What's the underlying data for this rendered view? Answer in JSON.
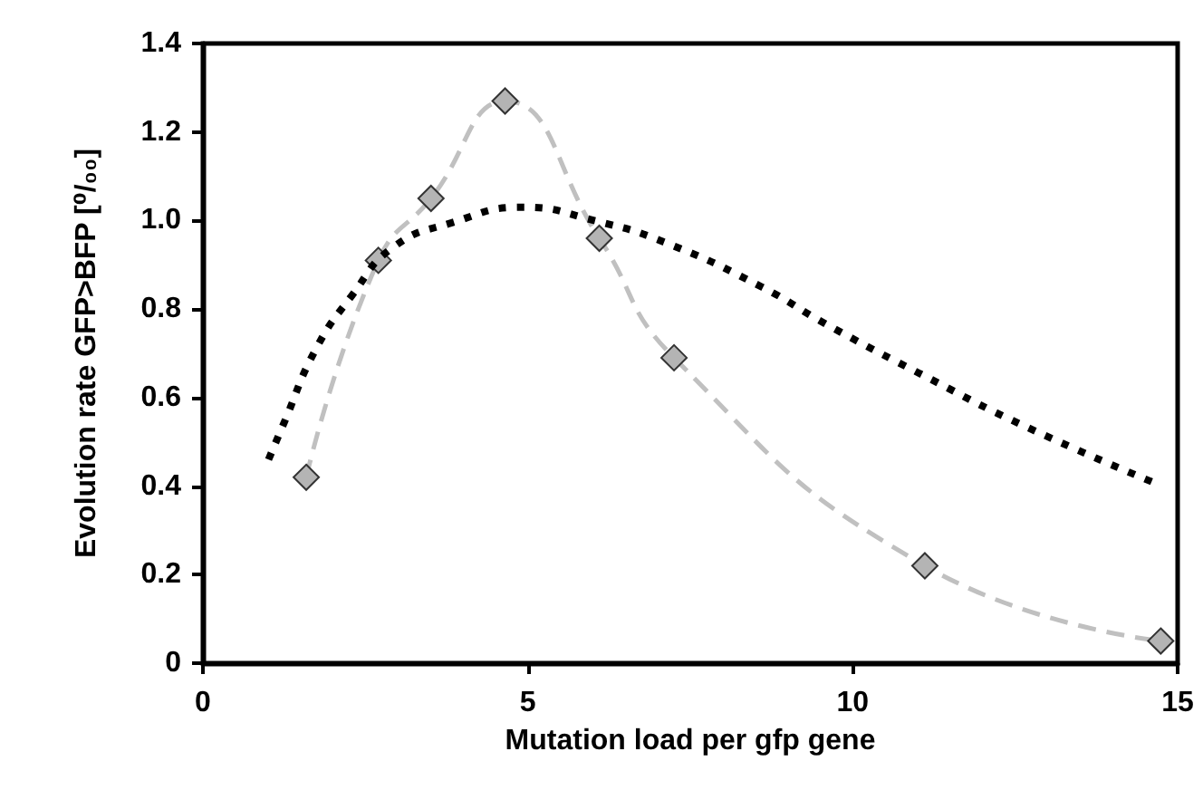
{
  "chart_data": {
    "type": "line",
    "xlabel": "Mutation load per gfp gene",
    "ylabel": "Evolution rate GFP>BFP [⁰/₀₀]",
    "xlim": [
      0,
      15
    ],
    "xticks": [
      0,
      5,
      10,
      15
    ],
    "ylim": [
      0,
      1.4
    ],
    "yticks": [
      0,
      0.2,
      0.4,
      0.6,
      0.8,
      {
        "value": 1,
        "label": "1.0"
      },
      1.2,
      1.4
    ],
    "grid": false,
    "series": [
      {
        "color": "#c0c0c0",
        "marker": "diamond",
        "line_style": "dashed",
        "x": [
          1.59,
          2.7,
          3.51,
          4.65,
          6.1,
          7.25,
          11.11,
          14.74
        ],
        "values": [
          0.42,
          0.91,
          1.05,
          1.27,
          0.96,
          0.69,
          0.22,
          0.05
        ]
      },
      {
        "color": "#000000",
        "marker": "none",
        "line_style": "dotted",
        "x": [
          1.01,
          1.24,
          1.74,
          2.29,
          2.93,
          3.83,
          4.92,
          6.02,
          7.12,
          8.6,
          9.6,
          11.09,
          12.58,
          14.6
        ],
        "values": [
          0.46,
          0.54,
          0.71,
          0.83,
          0.94,
          0.995,
          1.03,
          1.0,
          0.95,
          0.85,
          0.765,
          0.65,
          0.54,
          0.41
        ]
      }
    ]
  }
}
